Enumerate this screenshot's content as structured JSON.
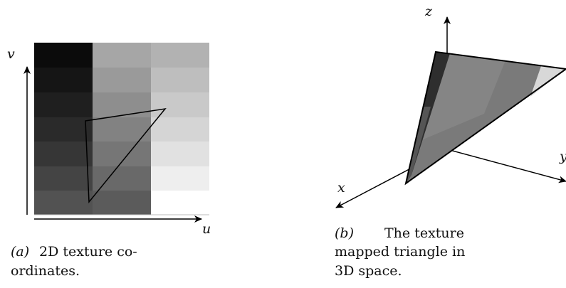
{
  "panel_a": {
    "axis_v": "v",
    "axis_u": "u",
    "label": "(a)",
    "caption_lines": [
      "2D texture co-",
      "ordinates."
    ]
  },
  "panel_b": {
    "axis_z": "z",
    "axis_y": "y",
    "axis_x": "x",
    "label": "(b)",
    "caption_lines": [
      "The texture",
      "mapped triangle in",
      "3D space."
    ]
  }
}
